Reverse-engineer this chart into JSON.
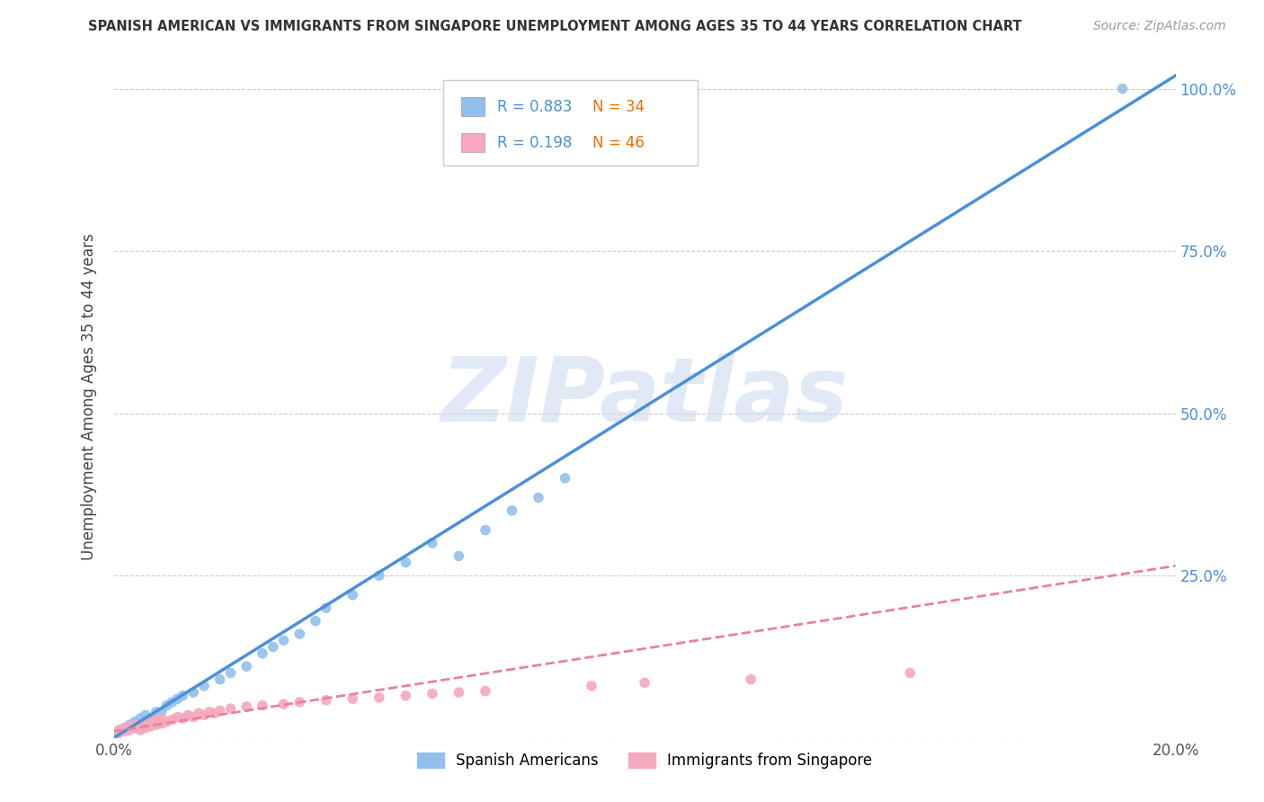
{
  "title": "SPANISH AMERICAN VS IMMIGRANTS FROM SINGAPORE UNEMPLOYMENT AMONG AGES 35 TO 44 YEARS CORRELATION CHART",
  "source": "Source: ZipAtlas.com",
  "ylabel": "Unemployment Among Ages 35 to 44 years",
  "watermark": "ZIPatlas",
  "blue_color": "#92c0ec",
  "pink_color": "#f5a8be",
  "blue_line_color": "#4a90d9",
  "pink_line_color": "#e8829a",
  "blue_scatter_x": [
    0.001,
    0.002,
    0.003,
    0.004,
    0.005,
    0.006,
    0.007,
    0.008,
    0.009,
    0.01,
    0.011,
    0.012,
    0.013,
    0.015,
    0.017,
    0.02,
    0.022,
    0.025,
    0.028,
    0.03,
    0.032,
    0.035,
    0.038,
    0.04,
    0.045,
    0.05,
    0.055,
    0.06,
    0.065,
    0.07,
    0.075,
    0.08,
    0.085,
    0.19
  ],
  "blue_scatter_y": [
    0.01,
    0.015,
    0.02,
    0.025,
    0.03,
    0.035,
    0.03,
    0.04,
    0.04,
    0.05,
    0.055,
    0.06,
    0.065,
    0.07,
    0.08,
    0.09,
    0.1,
    0.11,
    0.13,
    0.14,
    0.15,
    0.16,
    0.18,
    0.2,
    0.22,
    0.25,
    0.27,
    0.3,
    0.28,
    0.32,
    0.35,
    0.37,
    0.4,
    1.0
  ],
  "pink_scatter_x": [
    0.0005,
    0.001,
    0.001,
    0.002,
    0.002,
    0.003,
    0.003,
    0.004,
    0.004,
    0.005,
    0.005,
    0.006,
    0.006,
    0.007,
    0.007,
    0.008,
    0.008,
    0.009,
    0.009,
    0.01,
    0.011,
    0.012,
    0.013,
    0.014,
    0.015,
    0.016,
    0.017,
    0.018,
    0.019,
    0.02,
    0.022,
    0.025,
    0.028,
    0.032,
    0.035,
    0.04,
    0.045,
    0.05,
    0.055,
    0.06,
    0.065,
    0.07,
    0.09,
    0.1,
    0.12,
    0.15
  ],
  "pink_scatter_y": [
    0.005,
    0.008,
    0.012,
    0.01,
    0.015,
    0.012,
    0.018,
    0.015,
    0.02,
    0.012,
    0.018,
    0.015,
    0.022,
    0.018,
    0.025,
    0.02,
    0.028,
    0.022,
    0.03,
    0.025,
    0.028,
    0.032,
    0.03,
    0.035,
    0.032,
    0.038,
    0.035,
    0.04,
    0.038,
    0.042,
    0.045,
    0.048,
    0.05,
    0.052,
    0.055,
    0.058,
    0.06,
    0.062,
    0.065,
    0.068,
    0.07,
    0.072,
    0.08,
    0.085,
    0.09,
    0.1
  ],
  "blue_line_x": [
    0.0,
    0.2
  ],
  "blue_line_y": [
    0.0,
    1.02
  ],
  "pink_line_x": [
    0.0,
    0.2
  ],
  "pink_line_y": [
    0.01,
    0.265
  ],
  "xlim": [
    0.0,
    0.2
  ],
  "ylim": [
    0.0,
    1.05
  ],
  "xticks": [
    0.0,
    0.05,
    0.1,
    0.15,
    0.2
  ],
  "xtick_labels": [
    "0.0%",
    "",
    "",
    "",
    "20.0%"
  ],
  "yticks": [
    0.0,
    0.25,
    0.5,
    0.75,
    1.0
  ],
  "ytick_labels_right": [
    "",
    "25.0%",
    "50.0%",
    "75.0%",
    "100.0%"
  ],
  "grid_color": "#cccccc",
  "bg_color": "#ffffff",
  "legend_label_blue": "Spanish Americans",
  "legend_label_pink": "Immigrants from Singapore",
  "legend_R_color": "#4a90d9",
  "legend_N_color": "#e87000",
  "legend_R_blue": "R = 0.883",
  "legend_N_blue": "N = 34",
  "legend_R_pink": "R = 0.198",
  "legend_N_pink": "N = 46"
}
